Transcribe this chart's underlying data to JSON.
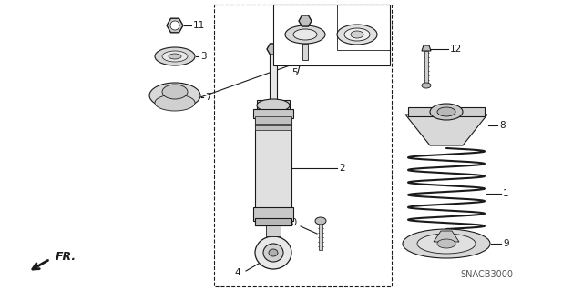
{
  "bg_color": "#ffffff",
  "line_color": "#1a1a1a",
  "figure_size": [
    6.4,
    3.19
  ],
  "dpi": 100,
  "watermark": "SNACB3000"
}
